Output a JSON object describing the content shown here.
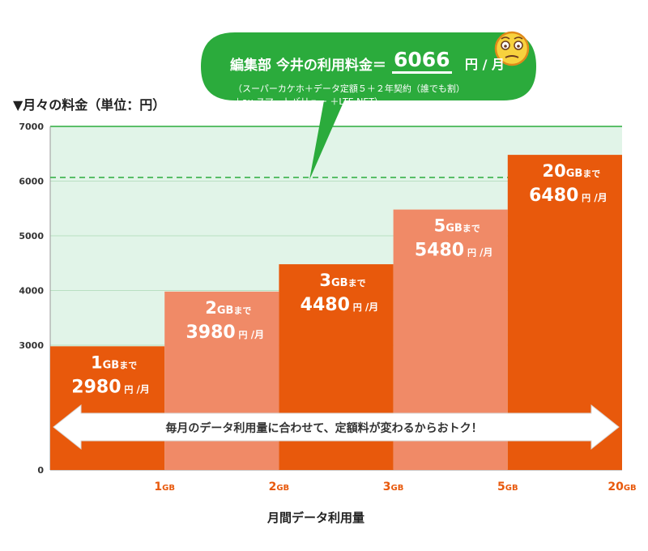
{
  "chart_title": "▼月々の料金（単位：円）",
  "bubble": {
    "label": "編集部 今井の利用料金＝",
    "value": "6066",
    "unit": "円 / 月",
    "detail_line1": "（スーパーカケホ＋データ定額５＋２年契約（誰でも割）",
    "detail_line2": "＋au スマートバリュー ＋LTE NET）",
    "icon": "emoji-face-icon"
  },
  "banner": "毎月のデータ利用量に合わせて、定額料が変わるからおトク！",
  "colors": {
    "dark_orange": "#e8590c",
    "light_orange": "#f08a67",
    "bg_green": "#e1f4e8",
    "grid_green": "#2bab3c",
    "bubble_green": "#2bab3c"
  },
  "chart_data": {
    "type": "bar",
    "title": "月々の料金（単位：円）",
    "xlabel": "月間データ利用量",
    "ylabel": "円",
    "categories": [
      "1GB",
      "2GB",
      "3GB",
      "5GB",
      "20GB"
    ],
    "category_parts": [
      [
        "1",
        "GB"
      ],
      [
        "2",
        "GB"
      ],
      [
        "3",
        "GB"
      ],
      [
        "5",
        "GB"
      ],
      [
        "20",
        "GB"
      ]
    ],
    "values": [
      2980,
      3980,
      4480,
      5480,
      6480
    ],
    "bar_label_suffix": "まで",
    "value_unit": "円 /月",
    "yticks": [
      0,
      3000,
      4000,
      5000,
      6000,
      7000
    ],
    "ylim": [
      0,
      7000
    ],
    "y_axis_break": true,
    "reference_line": {
      "value": 6066,
      "label": "編集部 今井の利用料金"
    }
  }
}
